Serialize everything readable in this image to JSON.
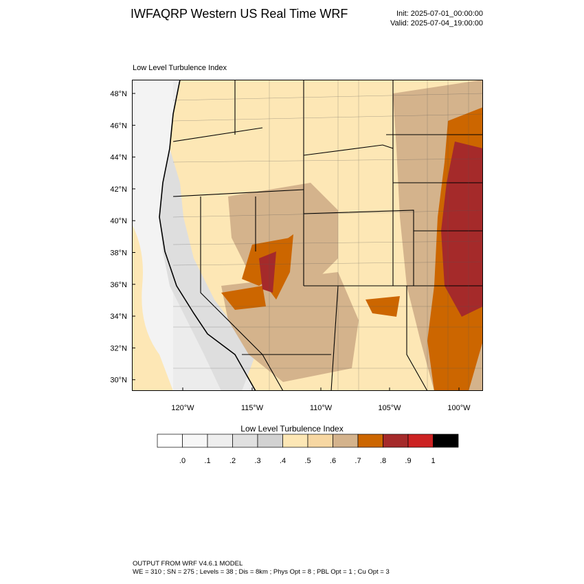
{
  "header": {
    "title": "IWFAQRP Western US Real Time WRF",
    "init": "Init: 2025-07-01_00:00:00",
    "valid": "Valid: 2025-07-04_19:00:00"
  },
  "plot": {
    "label": "Low Level Turbulence Index",
    "lat_ticks": [
      "48°N",
      "46°N",
      "44°N",
      "42°N",
      "40°N",
      "38°N",
      "36°N",
      "34°N",
      "32°N",
      "30°N"
    ],
    "lon_ticks": [
      "120°W",
      "115°W",
      "110°W",
      "105°W",
      "100°W"
    ]
  },
  "colorbar": {
    "title": "Low Level Turbulence Index",
    "labels": [
      ".0",
      ".1",
      ".2",
      ".3",
      ".4",
      ".5",
      ".6",
      ".7",
      ".8",
      ".9",
      "1"
    ],
    "colors": [
      "#ffffff",
      "#f7f7f7",
      "#eeeeee",
      "#e0e0e0",
      "#d2d2d2",
      "#fde7b5",
      "#f7d7a2",
      "#d4b38c",
      "#cc6600",
      "#a52a2a",
      "#cc2222",
      "#000000"
    ]
  },
  "footer": {
    "line1": "OUTPUT FROM WRF V4.6.1 MODEL",
    "line2": "WE = 310 ; SN = 275 ; Levels = 38 ; Dis = 8km ; Phys Opt = 8 ; PBL Opt = 1 ; Cu Opt = 3"
  }
}
